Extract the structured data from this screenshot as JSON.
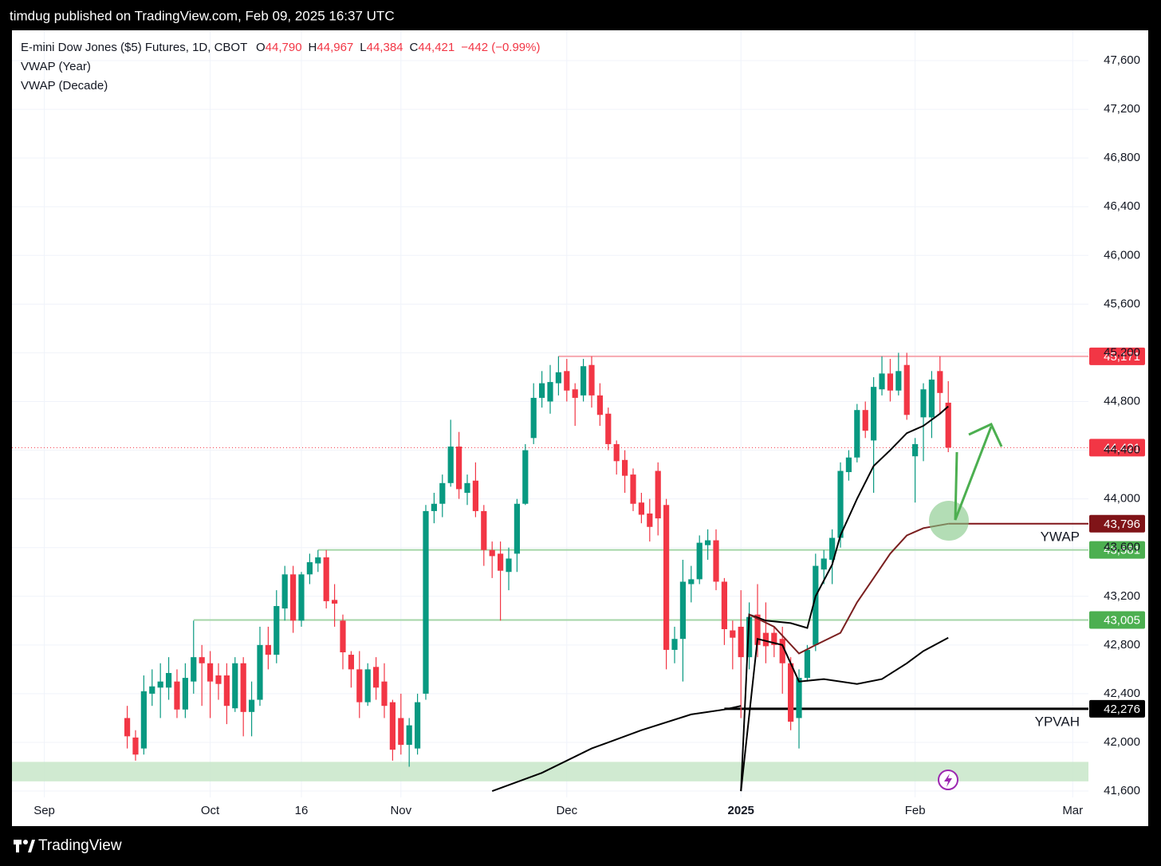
{
  "header": "timdug published on TradingView.com, Feb 09, 2025 16:37 UTC",
  "footer": "TradingView",
  "chart_data": {
    "type": "candlestick",
    "title": "E-mini Dow Jones ($5) Futures, 1D, CBOT",
    "quote": [
      {
        "key": "O",
        "value": "44,790"
      },
      {
        "key": "H",
        "value": "44,967"
      },
      {
        "key": "L",
        "value": "44,384"
      },
      {
        "key": "C",
        "value": "44,421"
      }
    ],
    "change": "−442 (−0.99%)",
    "indicators": [
      "VWAP (Year)",
      "VWAP (Decade)"
    ],
    "up_color": "#089981",
    "down_color": "#f23645",
    "candles": [
      [
        42200,
        42300,
        41950,
        42050
      ],
      [
        42040,
        42100,
        41850,
        41900
      ],
      [
        41950,
        42550,
        41900,
        42420
      ],
      [
        42400,
        42600,
        42300,
        42460
      ],
      [
        42450,
        42650,
        42200,
        42500
      ],
      [
        42450,
        42700,
        42350,
        42570
      ],
      [
        42500,
        42600,
        42200,
        42270
      ],
      [
        42270,
        42650,
        42200,
        42530
      ],
      [
        42500,
        43000,
        42400,
        42700
      ],
      [
        42700,
        42800,
        42300,
        42650
      ],
      [
        42650,
        42750,
        42200,
        42500
      ],
      [
        42550,
        42650,
        42350,
        42480
      ],
      [
        42550,
        42650,
        42150,
        42300
      ],
      [
        42280,
        42700,
        42250,
        42650
      ],
      [
        42650,
        42700,
        42050,
        42250
      ],
      [
        42250,
        42500,
        42050,
        42350
      ],
      [
        42350,
        42950,
        42300,
        42800
      ],
      [
        42800,
        42950,
        42600,
        42720
      ],
      [
        42720,
        43250,
        42650,
        43120
      ],
      [
        43100,
        43450,
        43000,
        43380
      ],
      [
        43380,
        43450,
        42900,
        43000
      ],
      [
        43000,
        43400,
        42950,
        43380
      ],
      [
        43380,
        43550,
        43300,
        43480
      ],
      [
        43470,
        43580,
        43400,
        43520
      ],
      [
        43520,
        43580,
        43100,
        43160
      ],
      [
        43170,
        43300,
        42950,
        43140
      ],
      [
        43000,
        43050,
        42600,
        42740
      ],
      [
        42720,
        42750,
        42450,
        42600
      ],
      [
        42600,
        42750,
        42200,
        42330
      ],
      [
        42330,
        42650,
        42300,
        42600
      ],
      [
        42620,
        42700,
        42350,
        42450
      ],
      [
        42500,
        42650,
        42200,
        42300
      ],
      [
        42330,
        42350,
        41850,
        41940
      ],
      [
        42200,
        42400,
        41900,
        41980
      ],
      [
        41980,
        42200,
        41800,
        42140
      ],
      [
        41950,
        42400,
        41900,
        42330
      ],
      [
        42400,
        43950,
        42350,
        43900
      ],
      [
        43900,
        44050,
        43800,
        43960
      ],
      [
        43960,
        44200,
        43850,
        44130
      ],
      [
        44130,
        44650,
        44100,
        44430
      ],
      [
        44430,
        44550,
        44000,
        44080
      ],
      [
        44050,
        44200,
        43950,
        44130
      ],
      [
        44150,
        44300,
        43850,
        43900
      ],
      [
        43900,
        43950,
        43450,
        43580
      ],
      [
        43580,
        43650,
        43350,
        43530
      ],
      [
        43550,
        43650,
        43000,
        43410
      ],
      [
        43400,
        43600,
        43250,
        43510
      ],
      [
        43550,
        44000,
        43400,
        43960
      ],
      [
        43960,
        44450,
        43950,
        44400
      ],
      [
        44500,
        44950,
        44450,
        44830
      ],
      [
        44830,
        45050,
        44750,
        44950
      ],
      [
        44800,
        45100,
        44700,
        44960
      ],
      [
        44950,
        45171,
        44850,
        45040
      ],
      [
        45050,
        45150,
        44800,
        44890
      ],
      [
        44900,
        44950,
        44600,
        44830
      ],
      [
        44850,
        45150,
        44800,
        45090
      ],
      [
        45100,
        45171,
        44750,
        44850
      ],
      [
        44850,
        44950,
        44600,
        44690
      ],
      [
        44700,
        44750,
        44400,
        44450
      ],
      [
        44450,
        44480,
        44200,
        44310
      ],
      [
        44320,
        44400,
        44050,
        44190
      ],
      [
        44200,
        44250,
        43900,
        43960
      ],
      [
        43970,
        44050,
        43800,
        43870
      ],
      [
        43880,
        44000,
        43650,
        43770
      ],
      [
        44230,
        44300,
        43700,
        43840
      ],
      [
        43950,
        44000,
        42600,
        42760
      ],
      [
        42760,
        42950,
        42650,
        42850
      ],
      [
        42850,
        43500,
        42500,
        43320
      ],
      [
        43300,
        43450,
        43150,
        43340
      ],
      [
        43340,
        43700,
        43300,
        43640
      ],
      [
        43620,
        43750,
        43500,
        43660
      ],
      [
        43660,
        43750,
        43250,
        43320
      ],
      [
        43320,
        43350,
        42800,
        42930
      ],
      [
        42920,
        43000,
        42600,
        42860
      ],
      [
        42950,
        43250,
        42200,
        42700
      ],
      [
        42700,
        43150,
        42600,
        43030
      ],
      [
        43050,
        43300,
        42700,
        42800
      ],
      [
        42900,
        43150,
        42650,
        42790
      ],
      [
        42900,
        42950,
        42700,
        42800
      ],
      [
        42850,
        42950,
        42400,
        42650
      ],
      [
        42650,
        42700,
        42100,
        42170
      ],
      [
        42200,
        42600,
        41950,
        42530
      ],
      [
        42530,
        42800,
        42500,
        42760
      ],
      [
        42800,
        43550,
        42750,
        43450
      ],
      [
        43420,
        43580,
        43300,
        43510
      ],
      [
        43500,
        43750,
        43300,
        43680
      ],
      [
        43680,
        44300,
        43600,
        44230
      ],
      [
        44220,
        44400,
        44150,
        44340
      ],
      [
        44340,
        44780,
        44300,
        44730
      ],
      [
        44730,
        44800,
        44500,
        44560
      ],
      [
        44480,
        45000,
        44050,
        44920
      ],
      [
        44900,
        45171,
        44850,
        45030
      ],
      [
        45030,
        45150,
        44800,
        44890
      ],
      [
        44890,
        45200,
        44850,
        45050
      ],
      [
        45100,
        45200,
        44650,
        44690
      ],
      [
        44350,
        44500,
        43970,
        44450
      ],
      [
        44670,
        44950,
        44310,
        44900
      ],
      [
        44670,
        45050,
        44500,
        44980
      ],
      [
        45050,
        45171,
        44700,
        44870
      ],
      [
        44790,
        44967,
        44384,
        44421
      ]
    ],
    "xlim": [
      -13.9,
      115.9
    ],
    "xticks": [
      {
        "value": -10,
        "label": "Sep"
      },
      {
        "value": 10,
        "label": "Oct"
      },
      {
        "value": 21,
        "label": "16"
      },
      {
        "value": 33,
        "label": "Nov"
      },
      {
        "value": 53,
        "label": "Dec"
      },
      {
        "value": 74,
        "label": "2025"
      },
      {
        "value": 95,
        "label": "Feb"
      },
      {
        "value": 114,
        "label": "Mar"
      }
    ],
    "ylim": [
      41548,
      47849
    ],
    "yticks": [
      {
        "value": 41600,
        "label": "41,600"
      },
      {
        "value": 42000,
        "label": "42,000"
      },
      {
        "value": 42400,
        "label": "42,400"
      },
      {
        "value": 42800,
        "label": "42,800"
      },
      {
        "value": 43200,
        "label": "43,200"
      },
      {
        "value": 43600,
        "label": "43,600"
      },
      {
        "value": 44000,
        "label": "44,000"
      },
      {
        "value": 44400,
        "label": "44,400"
      },
      {
        "value": 44800,
        "label": "44,800"
      },
      {
        "value": 45200,
        "label": "45,200"
      },
      {
        "value": 45600,
        "label": "45,600"
      },
      {
        "value": 46000,
        "label": "46,000"
      },
      {
        "value": 46400,
        "label": "46,400"
      },
      {
        "value": 46800,
        "label": "46,800"
      },
      {
        "value": 47200,
        "label": "47,200"
      },
      {
        "value": 47600,
        "label": "47,600"
      }
    ],
    "grid": true,
    "lines": [
      {
        "color": "#000000",
        "x": [
          74,
          75,
          77,
          80,
          82,
          83,
          85,
          86,
          88,
          90,
          92,
          94,
          96,
          98,
          99
        ],
        "values": [
          41600,
          43050,
          43000,
          42980,
          42940,
          43200,
          43460,
          43700,
          44000,
          44270,
          44400,
          44540,
          44600,
          44700,
          44760
        ]
      },
      {
        "color": "#000000",
        "x": [
          74,
          76,
          79,
          81,
          84,
          88,
          91,
          94,
          96,
          99
        ],
        "values": [
          41600,
          42850,
          42800,
          42500,
          42520,
          42480,
          42520,
          42650,
          42750,
          42860
        ]
      },
      {
        "color": "#000000",
        "x": [
          44,
          50,
          56,
          62,
          68,
          72,
          74
        ],
        "values": [
          41600,
          41750,
          41950,
          42100,
          42230,
          42270,
          42300
        ]
      },
      {
        "color": "#7a1f1f",
        "x": [
          75,
          78,
          81,
          83,
          86,
          88,
          90,
          92,
          94,
          96,
          99
        ],
        "values": [
          43050,
          42950,
          42730,
          42800,
          42900,
          43150,
          43350,
          43550,
          43700,
          43760,
          43796
        ]
      }
    ],
    "zone": [
      41680,
      41840
    ],
    "levels": [
      {
        "value": 45171,
        "label": "45,171",
        "color": "#f23645",
        "line_color": "#f7a8b0",
        "from": 52
      },
      {
        "value": 44421,
        "label": "44,421",
        "color": "#f23645",
        "line_color": "#f23645",
        "style": "dotted"
      },
      {
        "value": 43796,
        "label": "43,796",
        "color": "#801418",
        "line_color": "#801418",
        "from": 99,
        "name": "YWAP"
      },
      {
        "value": 43581,
        "label": "43,581",
        "color": "#4caf50",
        "line_color": "#a5d6a7",
        "from": 23
      },
      {
        "value": 43005,
        "label": "43,005",
        "color": "#4caf50",
        "line_color": "#a5d6a7",
        "from": 8
      },
      {
        "value": 42276,
        "label": "42,276",
        "color": "#000000",
        "line_color": "#000000",
        "from": 72,
        "name": "YPVAH"
      }
    ]
  }
}
